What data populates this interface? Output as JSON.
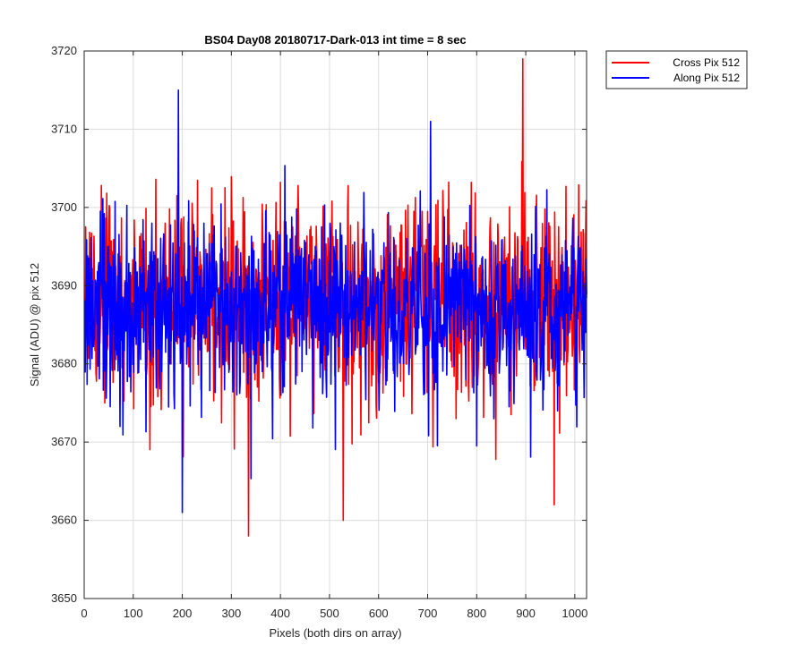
{
  "chart_data": {
    "type": "line",
    "title": "BS04 Day08 20180717-Dark-013 int time = 8 sec",
    "xlabel": "Pixels (both dirs on array)",
    "ylabel": "Signal (ADU) @ pix 512",
    "xlim": [
      0,
      1024
    ],
    "ylim": [
      3650,
      3720
    ],
    "xticks": [
      0,
      100,
      200,
      300,
      400,
      500,
      600,
      700,
      800,
      900,
      1000
    ],
    "yticks": [
      3650,
      3660,
      3670,
      3680,
      3690,
      3700,
      3710,
      3720
    ],
    "grid": true,
    "legend_position": "outside-top-right",
    "series": [
      {
        "name": "Cross Pix 512",
        "color": "#ff0000",
        "approx_mean": 3688,
        "approx_range": [
          3658,
          3719
        ],
        "notable_points": [
          {
            "x": 334,
            "y": 3658
          },
          {
            "x": 527,
            "y": 3660
          },
          {
            "x": 893,
            "y": 3719
          },
          {
            "x": 957,
            "y": 3662
          }
        ]
      },
      {
        "name": "Along Pix 512",
        "color": "#0000ff",
        "approx_mean": 3687,
        "approx_range": [
          3661,
          3715
        ],
        "notable_points": [
          {
            "x": 191,
            "y": 3715
          },
          {
            "x": 199,
            "y": 3661
          },
          {
            "x": 705,
            "y": 3711
          }
        ]
      }
    ]
  }
}
